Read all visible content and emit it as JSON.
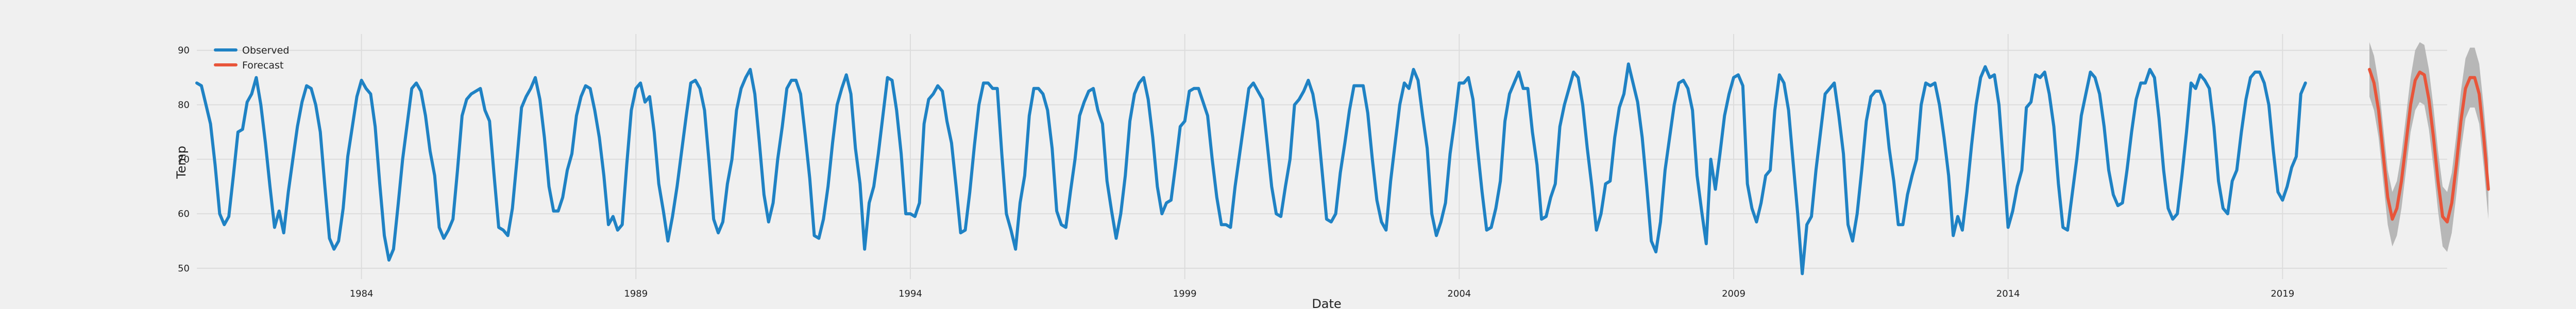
{
  "chart_data": {
    "type": "line",
    "title": "",
    "xlabel": "Date",
    "ylabel": "Temp",
    "ylim": [
      48,
      93
    ],
    "xlim": [
      1981.0,
      2022.0
    ],
    "yticks": [
      50,
      60,
      70,
      80,
      90
    ],
    "xticks": [
      1984,
      1989,
      1994,
      1999,
      2004,
      2009,
      2014,
      2019
    ],
    "grid": true,
    "legend_position": "top-left",
    "colors": {
      "observed": "#1f82c4",
      "forecast": "#e8553a",
      "band": "#b3b3b3",
      "background": "#f0f0f0",
      "grid": "#dcdcdc"
    },
    "series": [
      {
        "name": "Observed",
        "monthly": {
          "start": "1981-01",
          "values": [
            84,
            83.5,
            80,
            76.5,
            69,
            60,
            58,
            59.5,
            67,
            75,
            75.5,
            80.5,
            82,
            85,
            80,
            73,
            65,
            57.5,
            60.5,
            56.5,
            64,
            70,
            76,
            80.5,
            83.5,
            83,
            80,
            75,
            65,
            55.5,
            53.5,
            55,
            61,
            70.5,
            76,
            81.5,
            84.5,
            83,
            82,
            76,
            65.5,
            56,
            51.5,
            53.5,
            61.5,
            70,
            76.5,
            83,
            84,
            82.5,
            78,
            71.5,
            67,
            57.5,
            55.5,
            57,
            59,
            68,
            78,
            81,
            82,
            82.5,
            83,
            79,
            77,
            67,
            57.5,
            57,
            56,
            61,
            70,
            79.5,
            81.5,
            83,
            85,
            81,
            74,
            65,
            60.5,
            60.5,
            63,
            68,
            71,
            78,
            81.5,
            83.5,
            83,
            79,
            74,
            67,
            58,
            59.5,
            57,
            58,
            69,
            79,
            83,
            84,
            80.5,
            81.5,
            75,
            65.5,
            60.5,
            55,
            59.5,
            65,
            71.5,
            78,
            84,
            84.5,
            83,
            79,
            69.5,
            59,
            56.5,
            58.5,
            65.5,
            70,
            79,
            83,
            85,
            86.5,
            82,
            73,
            63.5,
            58.5,
            62,
            70,
            76,
            83,
            84.5,
            84.5,
            82,
            74.5,
            66.5,
            56,
            55.5,
            59,
            65,
            73,
            80,
            83,
            85.5,
            82,
            72,
            65.5,
            53.5,
            62,
            65,
            71,
            78,
            85,
            84.5,
            79,
            71,
            60,
            60,
            59.5,
            62,
            76.5,
            81,
            82,
            83.5,
            82.5,
            77,
            73,
            65,
            56.5,
            57,
            64,
            72.5,
            80,
            84,
            84,
            83,
            83,
            71,
            60,
            57,
            53.5,
            62,
            67,
            78,
            83,
            83,
            82,
            79,
            72,
            60.5,
            58,
            57.5,
            64,
            70,
            78,
            80.5,
            82.5,
            83,
            79,
            76.5,
            66,
            60.5,
            55.5,
            60,
            67,
            77,
            82,
            84,
            85,
            81,
            74,
            65,
            60,
            62,
            62.5,
            69,
            76,
            77,
            82.5,
            83,
            83,
            80.5,
            78,
            70,
            63,
            58,
            58,
            57.5,
            65,
            71,
            77,
            83,
            84,
            82.5,
            81,
            73,
            65,
            60,
            59.5,
            65,
            70,
            80,
            81,
            82.5,
            84.5,
            82,
            77,
            68,
            59,
            58.5,
            60,
            67.5,
            73,
            79,
            83.5,
            83.5,
            83.5,
            78.5,
            70,
            62.5,
            58.5,
            57,
            66,
            73,
            80,
            84,
            83,
            86.5,
            84.5,
            78,
            72,
            60,
            56,
            58.5,
            62,
            71,
            77,
            84,
            84,
            85,
            81,
            72,
            64,
            57,
            57.5,
            61,
            66,
            77,
            82,
            84,
            86,
            83,
            83,
            75,
            69,
            59,
            59.5,
            63,
            65.5,
            76,
            80,
            83,
            86,
            85,
            80,
            72,
            65,
            57,
            60,
            65.5,
            66,
            74,
            79.5,
            82,
            87.5,
            84,
            80.5,
            74,
            65,
            55,
            53,
            58.5,
            68,
            74,
            80,
            84,
            84.5,
            83,
            79,
            67,
            60.5,
            54.5,
            70,
            64.5,
            71,
            78,
            82,
            85,
            85.5,
            83.5,
            65.5,
            61,
            58.5,
            62,
            67,
            68,
            79,
            85.5,
            84,
            79,
            69.5,
            60,
            49,
            58,
            59.5,
            68,
            75,
            82,
            83,
            84,
            78,
            71,
            58,
            55,
            60,
            68,
            77,
            81.5,
            82.5,
            82.5,
            80,
            72,
            66,
            58,
            58,
            63.5,
            67,
            70,
            80,
            84,
            83.5,
            84,
            80,
            74,
            67,
            56,
            59.5,
            57,
            64,
            72.5,
            80,
            85,
            87,
            85,
            85.5,
            80,
            69,
            57.5,
            60.5,
            65,
            68,
            79.5,
            80.5,
            85.5,
            85,
            86,
            82,
            76,
            65.5,
            57.5,
            57,
            63.5,
            70,
            78,
            82,
            86,
            85,
            82,
            76,
            68,
            63.5,
            61.5,
            62,
            68,
            75,
            81,
            84,
            84,
            86.5,
            85,
            77.5,
            68,
            61,
            59,
            60,
            67,
            75,
            84,
            83,
            85.5,
            84.5,
            83,
            76,
            66,
            61,
            60,
            66,
            68,
            75,
            81,
            85,
            86,
            86,
            84,
            80,
            71.5,
            64,
            62.5,
            65,
            68.5,
            70.5,
            82,
            84
          ]
        }
      },
      {
        "name": "Forecast",
        "monthly": {
          "start": "2020-08",
          "values": [
            86.5,
            84,
            79,
            71,
            63,
            59,
            61,
            66,
            73,
            80,
            84.5,
            86,
            85.5,
            81,
            74,
            66,
            59.5,
            58.5,
            62,
            69,
            77,
            83,
            85,
            85,
            82,
            74,
            64.5
          ]
        }
      }
    ],
    "confidence_interval": {
      "start": "2020-08",
      "lower": [
        81.5,
        79,
        74,
        66,
        58,
        54,
        56,
        61,
        68,
        75,
        79,
        80.5,
        80,
        75.5,
        68.5,
        60.5,
        54,
        53,
        56.5,
        63.5,
        71.5,
        77.5,
        79.5,
        79.5,
        76.5,
        68.5,
        59
      ],
      "upper": [
        91.5,
        89,
        84,
        76,
        68,
        64,
        66,
        71,
        78,
        85,
        90,
        91.5,
        91,
        86.5,
        79.5,
        71.5,
        65,
        64,
        67.5,
        74.5,
        82.5,
        88.5,
        90.5,
        90.5,
        87.5,
        79.5,
        70
      ]
    }
  }
}
